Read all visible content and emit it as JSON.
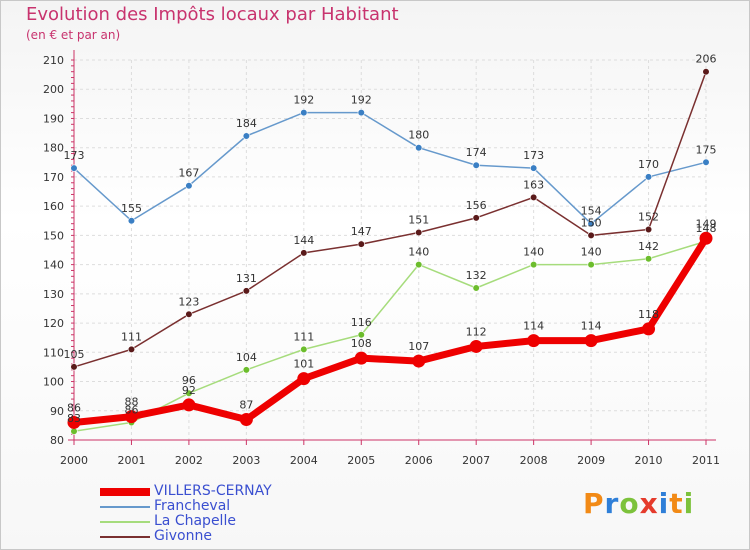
{
  "title": "Evolution des Impôts locaux par Habitant",
  "subtitle": "(en € et par an)",
  "logo": {
    "text": "Proxiti",
    "letter_colors": [
      "#f28a16",
      "#2f7fd8",
      "#7cc23b",
      "#e53b2c",
      "#2f7fd8",
      "#f28a16",
      "#7cc23b"
    ]
  },
  "chart_data": {
    "type": "line",
    "title": "Evolution des Impôts locaux par Habitant",
    "subtitle": "(en € et par an)",
    "xlabel": "",
    "ylabel": "",
    "ylim": [
      80,
      210
    ],
    "yticks": [
      80,
      90,
      100,
      110,
      120,
      130,
      140,
      150,
      160,
      170,
      180,
      190,
      200,
      210
    ],
    "x": [
      "2000",
      "2001",
      "2002",
      "2003",
      "2004",
      "2005",
      "2006",
      "2007",
      "2008",
      "2009",
      "2010",
      "2011"
    ],
    "grid": true,
    "legend_position": "bottom-left",
    "series": [
      {
        "name": "Francheval",
        "color": "#6699cc",
        "marker": "#3a7fc4",
        "width": 1.5,
        "values": [
          173,
          155,
          167,
          184,
          192,
          192,
          180,
          174,
          173,
          154,
          170,
          175
        ]
      },
      {
        "name": "Givonne",
        "color": "#7a3030",
        "marker": "#5a1a1a",
        "width": 1.5,
        "values": [
          105,
          111,
          123,
          131,
          144,
          147,
          151,
          156,
          163,
          150,
          152,
          206
        ]
      },
      {
        "name": "La Chapelle",
        "color": "#a6dc7c",
        "marker": "#6cbd2c",
        "width": 1.5,
        "values": [
          83,
          86,
          96,
          104,
          111,
          116,
          140,
          132,
          140,
          140,
          142,
          148
        ]
      },
      {
        "name": "VILLERS-CERNAY",
        "color": "#ee0000",
        "marker": "#ee0000",
        "width": 7,
        "values": [
          86,
          88,
          92,
          87,
          101,
          108,
          107,
          112,
          114,
          114,
          118,
          149
        ]
      }
    ],
    "legend_order": [
      "VILLERS-CERNAY",
      "Francheval",
      "La Chapelle",
      "Givonne"
    ]
  }
}
